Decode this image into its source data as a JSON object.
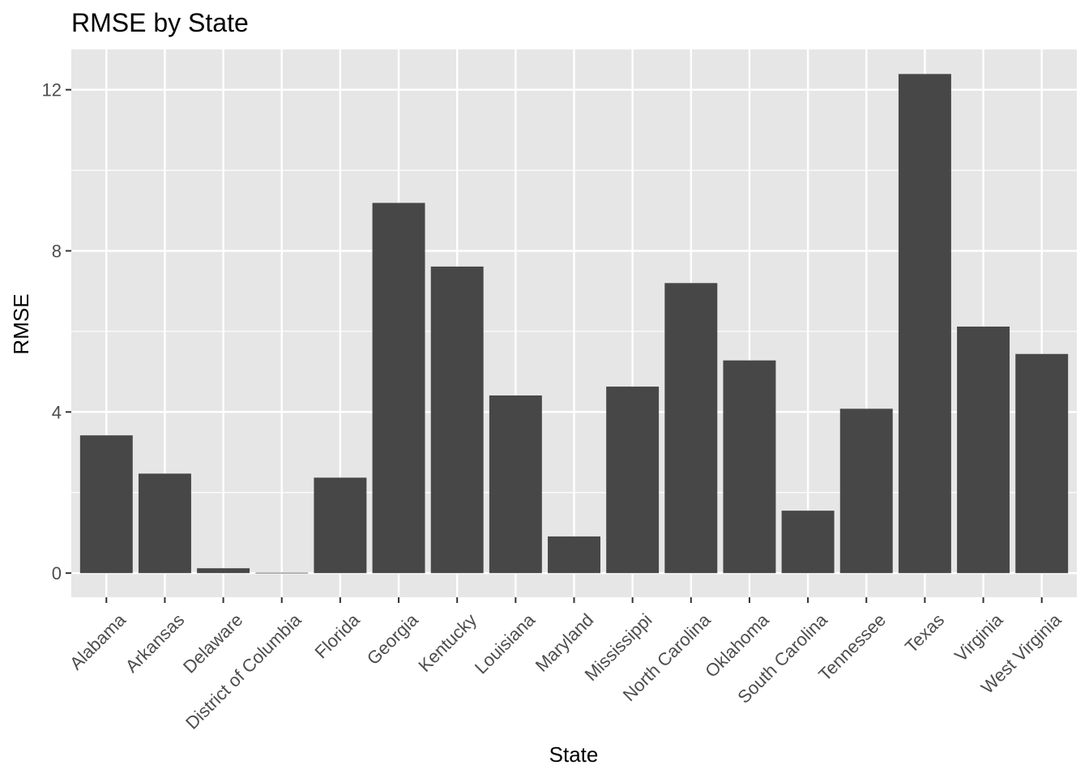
{
  "chart_data": {
    "type": "bar",
    "title": "RMSE by State",
    "xlabel": "State",
    "ylabel": "RMSE",
    "categories": [
      "Alabama",
      "Arkansas",
      "Delaware",
      "District of Columbia",
      "Florida",
      "Georgia",
      "Kentucky",
      "Louisiana",
      "Maryland",
      "Mississippi",
      "North Carolina",
      "Oklahoma",
      "South Carolina",
      "Tennessee",
      "Texas",
      "Virginia",
      "West Virginia"
    ],
    "values": [
      3.42,
      2.47,
      0.12,
      0.01,
      2.37,
      9.19,
      7.61,
      4.41,
      0.91,
      4.63,
      7.2,
      5.28,
      1.55,
      4.08,
      12.39,
      6.12,
      5.44
    ],
    "ylim": [
      -0.6,
      13.0
    ],
    "yticks": [
      0,
      4,
      8,
      12
    ],
    "grid": true,
    "colors": {
      "bar": "#474747",
      "panel": "#e6e6e6",
      "grid": "#ffffff",
      "tick": "#333333",
      "tick_label": "#4d4d4d"
    }
  }
}
